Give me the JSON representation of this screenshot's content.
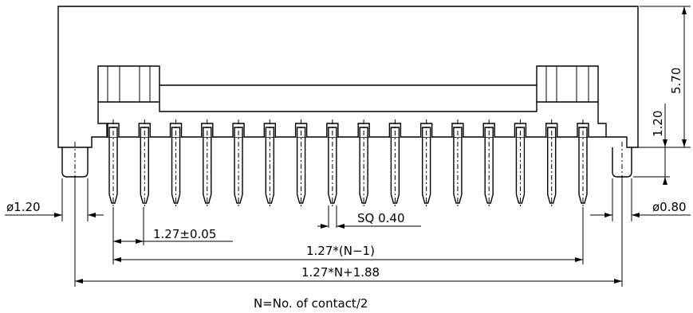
{
  "drawing": {
    "total_height": "5.70",
    "body_height": "1.20",
    "boss_dia_left": "ø1.20",
    "boss_dia_right": "ø0.80",
    "pitch": "1.27±0.05",
    "pin_size": "SQ 0.40",
    "pin_span": "1.27*(N−1)",
    "overall_length": "1.27*N+1.88",
    "note": "N=No. of contact/2",
    "pin_count_shown": 16
  }
}
